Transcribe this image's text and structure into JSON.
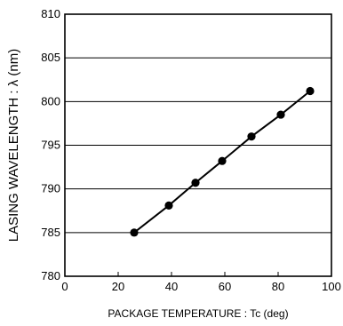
{
  "chart_data": {
    "type": "line",
    "title": "",
    "xlabel": "PACKAGE TEMPERATURE : Tc (deg)",
    "ylabel": "LASING WAVELENGTH : λ (nm)",
    "xlim": [
      0,
      100
    ],
    "ylim": [
      780,
      810
    ],
    "xticks": [
      0,
      20,
      40,
      60,
      80,
      100
    ],
    "yticks": [
      780,
      785,
      790,
      795,
      800,
      805,
      810
    ],
    "grid": {
      "horizontal": true,
      "vertical": false
    },
    "legend": "none",
    "series": [
      {
        "x": [
          26,
          39,
          49,
          59,
          70,
          81,
          92
        ],
        "y": [
          785.0,
          788.1,
          790.7,
          793.2,
          796.0,
          798.5,
          801.2
        ],
        "marker": "filled-circle",
        "color": "#000000"
      }
    ]
  }
}
